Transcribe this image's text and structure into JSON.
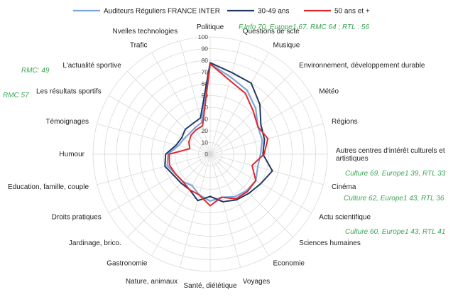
{
  "chart_data": {
    "type": "radar",
    "title": "",
    "r_ticks": [
      0,
      10,
      20,
      30,
      40,
      50,
      60,
      70,
      80,
      90,
      100
    ],
    "rlim": [
      0,
      100
    ],
    "grid": true,
    "legend_position": "top",
    "categories": [
      "Politique",
      "Questions de scté",
      "Musique",
      "Environnement, développement durable",
      "Météo",
      "Régions",
      "Autres centres d'intérêt culturels et artistiques",
      "Cinéma",
      "Actu scientifique",
      "Sciences humaines",
      "Economie",
      "Voyages",
      "Santé, diététique",
      "Nature, animaux",
      "Gastronomie",
      "Jardinage, brico.",
      "Droits pratiques",
      "Education, famille, couple",
      "Humour",
      "Témoignages",
      "Les résultats sportifs",
      "L'actualité sportive",
      "Trafic",
      "Nvelles technologies"
    ],
    "series": [
      {
        "name": "Auditeurs Réguliers FRANCE INTER",
        "color": "#7da7d9",
        "values": [
          77,
          68,
          63,
          55,
          47,
          46,
          43,
          42,
          45,
          44,
          42,
          38,
          40,
          36,
          31,
          33,
          34,
          38,
          36,
          28,
          26,
          25,
          26,
          28
        ]
      },
      {
        "name": "30-49 ans",
        "color": "#1f3864",
        "values": [
          78,
          72,
          70,
          60,
          50,
          48,
          45,
          55,
          50,
          47,
          45,
          42,
          36,
          41,
          35,
          35,
          36,
          40,
          38,
          30,
          28,
          30,
          30,
          32
        ]
      },
      {
        "name": "50 ans et +",
        "color": "#e0282e",
        "values": [
          77,
          65,
          60,
          52,
          47,
          51,
          46,
          37,
          45,
          45,
          44,
          38,
          44,
          36,
          35,
          33,
          34,
          36,
          35,
          18,
          21,
          23,
          24,
          25
        ]
      }
    ],
    "annotations": [
      "F.Info  70, Europe1 67, RMC 64 ; RTL : 56",
      "RMC: 49",
      "RMC  57",
      "Culture 69, Europe1 39, RTL 33",
      "Culture 62, Europe1 43, RTL 36",
      "Culture 60, Europe1 43, RTL 41"
    ]
  }
}
